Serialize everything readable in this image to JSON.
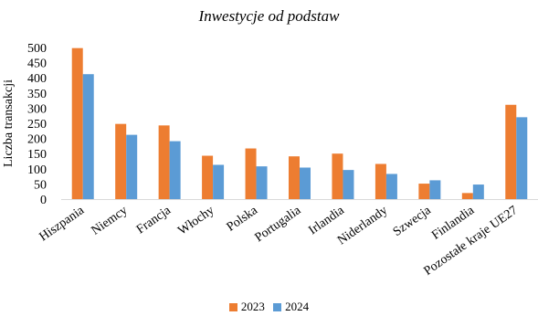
{
  "chart_data": {
    "type": "bar",
    "title": "Inwestycje od podstaw",
    "ylabel": "Liczba transakcji",
    "xlabel": "",
    "ylim": [
      0,
      500
    ],
    "yticks": [
      0,
      50,
      100,
      150,
      200,
      250,
      300,
      350,
      400,
      450,
      500
    ],
    "grid": false,
    "legend_position": "bottom",
    "categories": [
      "Hiszpania",
      "Niemcy",
      "Francja",
      "Włochy",
      "Polska",
      "Portugalia",
      "Irlandia",
      "Niderlandy",
      "Szwecja",
      "Finlandia",
      "Pozostałe kraje UE27"
    ],
    "series": [
      {
        "name": "2023",
        "color": "#ED7D31",
        "values": [
          498,
          248,
          243,
          143,
          167,
          141,
          150,
          116,
          51,
          20,
          311
        ]
      },
      {
        "name": "2024",
        "color": "#5B9BD5",
        "values": [
          412,
          212,
          191,
          113,
          108,
          104,
          96,
          83,
          62,
          48,
          270
        ]
      }
    ]
  }
}
